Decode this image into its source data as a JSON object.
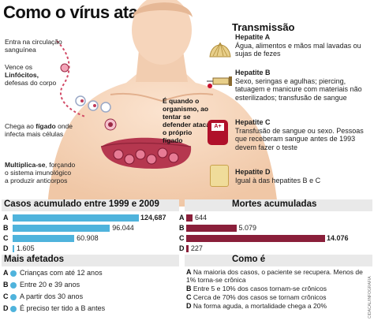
{
  "title": "Como o vírus ataca",
  "infographic": {
    "labels": {
      "entry": "Entra na circulação sanguínea",
      "lymphocytes_pre": "Vence os ",
      "lymphocytes_bold": "Linfócitos,",
      "lymphocytes_post": " defesas do corpo",
      "liver_pre": "Chega ao ",
      "liver_bold": "fígado",
      "liver_post": " onde infecta mais células",
      "multiply_bold": "Multiplica-se",
      "multiply_post": ", forçando o sistema imunológico a produzir anticorpos",
      "center": "É quando o organismo, ao tentar se defender ataca o próprio fígado"
    },
    "transmission": {
      "title": "Transmissão",
      "items": [
        {
          "name": "Hepatite A",
          "desc": "Água, alimentos e mãos mal lavadas ou sujas de fezes",
          "icon": "shellfish-icon"
        },
        {
          "name": "Hepatite B",
          "desc": "Sexo, seringas e agulhas; piercing, tatuagem e manicure com materiais não esterilizados; transfusão de sangue",
          "icon": "syringe-icon"
        },
        {
          "name": "Hepatite C",
          "desc": "Transfusão de sangue ou sexo. Pessoas que receberam sangue antes de 1993 devem fazer o teste",
          "icon": "blood-bag-icon",
          "bag_label": "A+"
        },
        {
          "name": "Hepatite D",
          "desc": "Igual à das hepatites B e C",
          "icon": "jar-icon"
        }
      ]
    }
  },
  "cases": {
    "title": "Casos acumulado entre 1999 e 2009",
    "rows": [
      {
        "letter": "A",
        "value": 124687,
        "label": "124,687"
      },
      {
        "letter": "B",
        "value": 96044,
        "label": "96.044"
      },
      {
        "letter": "C",
        "value": 60908,
        "label": "60.908"
      },
      {
        "letter": "D",
        "value": 1605,
        "label": "1.605"
      }
    ]
  },
  "deaths": {
    "title": "Mortes acumuladas",
    "rows": [
      {
        "letter": "A",
        "value": 644,
        "label": "644"
      },
      {
        "letter": "B",
        "value": 5079,
        "label": "5.079"
      },
      {
        "letter": "C",
        "value": 14076,
        "label": "14.076"
      },
      {
        "letter": "D",
        "value": 227,
        "label": "227"
      }
    ]
  },
  "most_affected": {
    "title": "Mais afetados",
    "rows": [
      {
        "letter": "A",
        "text": "Crianças com até 12 anos"
      },
      {
        "letter": "B",
        "text": "Entre 20 e 39 anos"
      },
      {
        "letter": "C",
        "text": "A partir dos 30 anos"
      },
      {
        "letter": "D",
        "text": "É preciso ter tido a B antes"
      }
    ]
  },
  "how_it_is": {
    "title": "Como é",
    "rows": [
      {
        "letter": "A",
        "text": "Na maioria dos casos, o paciente se recupera. Menos de 1% torna-se crônica"
      },
      {
        "letter": "B",
        "text": "Entre 5 e 10% dos casos tornam-se crônicos"
      },
      {
        "letter": "C",
        "text": "Cerca de 70% dos casos se tornam crônicos"
      },
      {
        "letter": "D",
        "text": "Na forma aguda, a mortalidade chega a 20%"
      }
    ]
  },
  "credit": "CIDACAL/INFOGRAFIA",
  "colors": {
    "cases_bar": "#4fb3dc",
    "deaths_bar": "#8a1f3a",
    "bullet": "#4fb3dc",
    "header_bg": "#e9e9e9"
  },
  "chart_data": [
    {
      "type": "bar",
      "title": "Casos acumulado entre 1999 e 2009",
      "categories": [
        "A",
        "B",
        "C",
        "D"
      ],
      "values": [
        124687,
        96044,
        60908,
        1605
      ]
    },
    {
      "type": "bar",
      "title": "Mortes acumuladas",
      "categories": [
        "A",
        "B",
        "C",
        "D"
      ],
      "values": [
        644,
        5079,
        14076,
        227
      ]
    }
  ]
}
